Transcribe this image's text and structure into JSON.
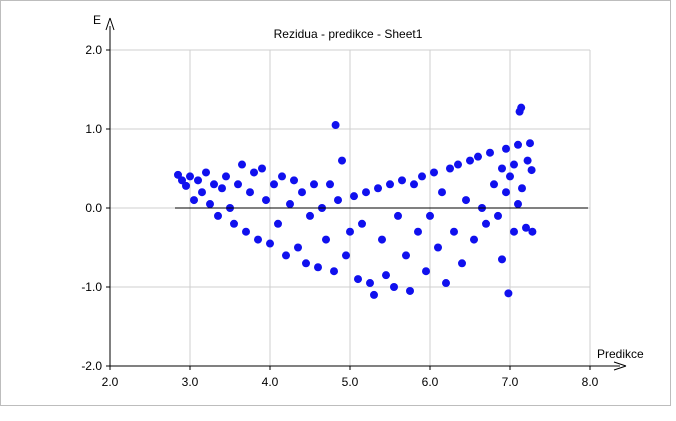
{
  "chart_data": {
    "type": "scatter",
    "title": "Rezidua - predikce - Sheet1",
    "xlabel": "Predikce",
    "ylabel": "E",
    "xlim": [
      2.0,
      8.0
    ],
    "ylim": [
      -2.0,
      2.0
    ],
    "x_ticks": [
      "2.0",
      "3.0",
      "4.0",
      "5.0",
      "6.0",
      "7.0",
      "8.0"
    ],
    "y_ticks": [
      "2.0",
      "1.0",
      "0.0",
      "-1.0",
      "-2.0"
    ],
    "grid": true,
    "point_color": "#1010ee",
    "series": [
      {
        "points": [
          [
            2.85,
            0.42
          ],
          [
            2.9,
            0.35
          ],
          [
            2.95,
            0.28
          ],
          [
            3.0,
            0.4
          ],
          [
            3.05,
            0.1
          ],
          [
            3.1,
            0.35
          ],
          [
            3.15,
            0.2
          ],
          [
            3.2,
            0.45
          ],
          [
            3.25,
            0.05
          ],
          [
            3.3,
            0.3
          ],
          [
            3.35,
            -0.1
          ],
          [
            3.4,
            0.25
          ],
          [
            3.45,
            0.4
          ],
          [
            3.5,
            0.0
          ],
          [
            3.55,
            -0.2
          ],
          [
            3.6,
            0.3
          ],
          [
            3.65,
            0.55
          ],
          [
            3.7,
            -0.3
          ],
          [
            3.75,
            0.2
          ],
          [
            3.8,
            0.45
          ],
          [
            3.85,
            -0.4
          ],
          [
            3.9,
            0.5
          ],
          [
            3.95,
            0.1
          ],
          [
            4.0,
            -0.45
          ],
          [
            4.05,
            0.3
          ],
          [
            4.1,
            -0.2
          ],
          [
            4.15,
            0.4
          ],
          [
            4.2,
            -0.6
          ],
          [
            4.25,
            0.05
          ],
          [
            4.3,
            0.35
          ],
          [
            4.35,
            -0.5
          ],
          [
            4.4,
            0.2
          ],
          [
            4.45,
            -0.7
          ],
          [
            4.5,
            -0.1
          ],
          [
            4.55,
            0.3
          ],
          [
            4.6,
            -0.75
          ],
          [
            4.65,
            0.0
          ],
          [
            4.7,
            -0.4
          ],
          [
            4.75,
            0.3
          ],
          [
            4.8,
            -0.8
          ],
          [
            4.82,
            1.05
          ],
          [
            4.85,
            0.1
          ],
          [
            4.9,
            0.6
          ],
          [
            4.95,
            -0.6
          ],
          [
            5.0,
            -0.3
          ],
          [
            5.05,
            0.15
          ],
          [
            5.1,
            -0.9
          ],
          [
            5.15,
            -0.2
          ],
          [
            5.2,
            0.2
          ],
          [
            5.25,
            -0.95
          ],
          [
            5.3,
            -1.1
          ],
          [
            5.35,
            0.25
          ],
          [
            5.4,
            -0.4
          ],
          [
            5.45,
            -0.85
          ],
          [
            5.5,
            0.3
          ],
          [
            5.55,
            -1.0
          ],
          [
            5.6,
            -0.1
          ],
          [
            5.65,
            0.35
          ],
          [
            5.7,
            -0.6
          ],
          [
            5.75,
            -1.05
          ],
          [
            5.8,
            0.3
          ],
          [
            5.85,
            -0.3
          ],
          [
            5.9,
            0.4
          ],
          [
            5.95,
            -0.8
          ],
          [
            6.0,
            -0.1
          ],
          [
            6.05,
            0.45
          ],
          [
            6.1,
            -0.5
          ],
          [
            6.15,
            0.2
          ],
          [
            6.2,
            -0.95
          ],
          [
            6.25,
            0.5
          ],
          [
            6.3,
            -0.3
          ],
          [
            6.35,
            0.55
          ],
          [
            6.4,
            -0.7
          ],
          [
            6.45,
            0.1
          ],
          [
            6.5,
            0.6
          ],
          [
            6.55,
            -0.4
          ],
          [
            6.6,
            0.65
          ],
          [
            6.65,
            0.0
          ],
          [
            6.7,
            -0.2
          ],
          [
            6.75,
            0.7
          ],
          [
            6.8,
            0.3
          ],
          [
            6.85,
            -0.1
          ],
          [
            6.9,
            -0.65
          ],
          [
            6.95,
            0.75
          ],
          [
            6.98,
            -1.08
          ],
          [
            7.0,
            0.4
          ],
          [
            7.05,
            -0.3
          ],
          [
            7.1,
            0.8
          ],
          [
            7.12,
            1.22
          ],
          [
            7.14,
            1.27
          ],
          [
            7.15,
            0.25
          ],
          [
            7.2,
            -0.25
          ],
          [
            7.25,
            0.82
          ],
          [
            7.27,
            0.48
          ],
          [
            7.28,
            -0.3
          ],
          [
            7.22,
            0.6
          ],
          [
            7.1,
            0.05
          ],
          [
            7.05,
            0.55
          ],
          [
            6.95,
            0.2
          ],
          [
            6.9,
            0.5
          ]
        ]
      }
    ]
  }
}
